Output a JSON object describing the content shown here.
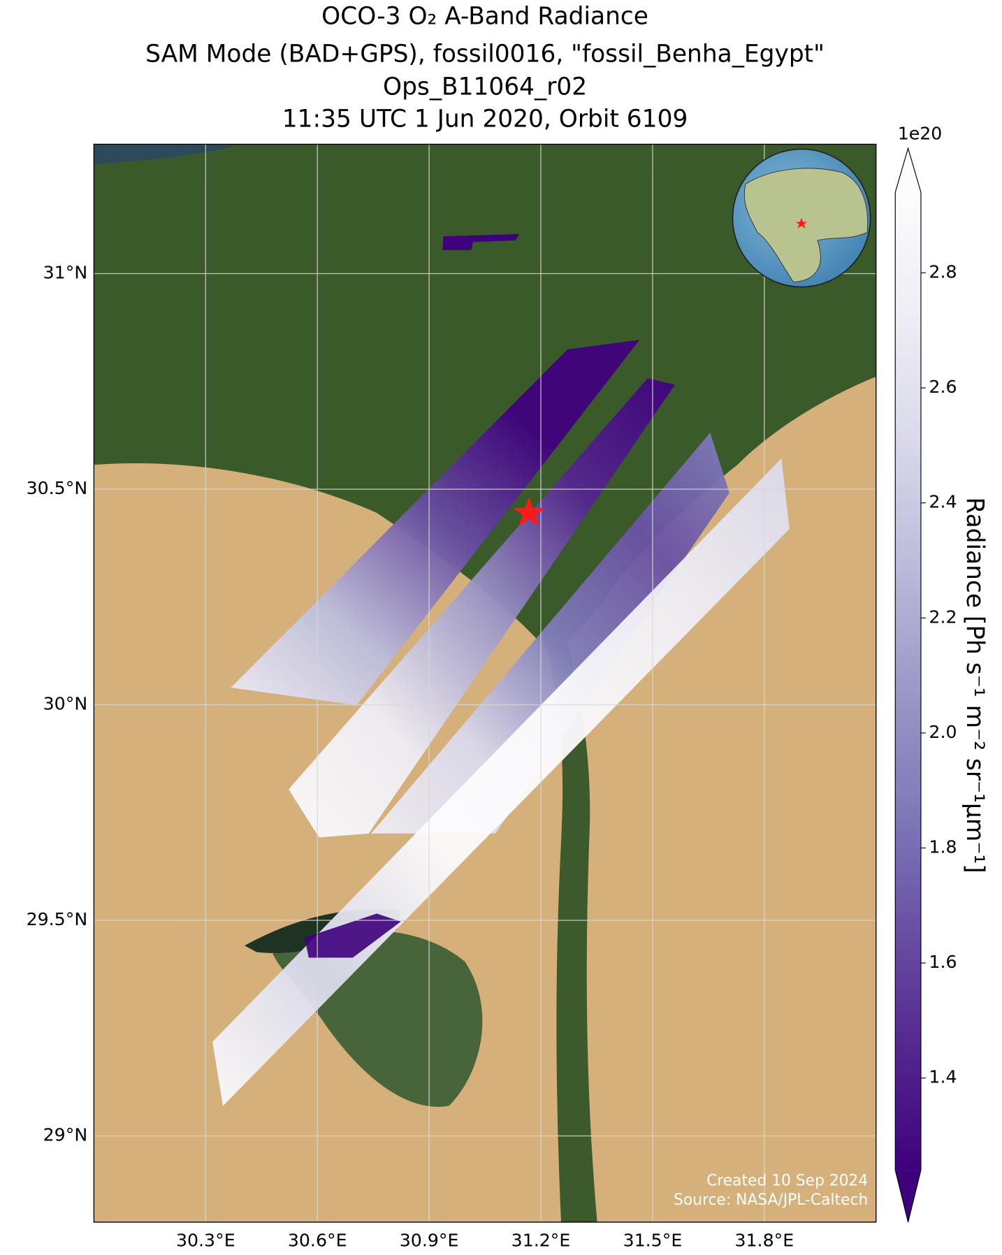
{
  "chart_data": {
    "type": "map",
    "title": [
      "OCO-3 O₂ A-Band Radiance",
      "SAM Mode (BAD+GPS), fossil0016, \"fossil_Benha_Egypt\"",
      "Ops_B11064_r02",
      "11:35 UTC 1 Jun 2020, Orbit 6109"
    ],
    "xlim": [
      30.0,
      32.1
    ],
    "ylim": [
      28.8,
      31.3
    ],
    "xticks": [
      {
        "value": 30.3,
        "label": "30.3°E"
      },
      {
        "value": 30.6,
        "label": "30.6°E"
      },
      {
        "value": 30.9,
        "label": "30.9°E"
      },
      {
        "value": 31.2,
        "label": "31.2°E"
      },
      {
        "value": 31.5,
        "label": "31.5°E"
      },
      {
        "value": 31.8,
        "label": "31.8°E"
      }
    ],
    "yticks": [
      {
        "value": 29,
        "label": "29°N"
      },
      {
        "value": 29.5,
        "label": "29.5°N"
      },
      {
        "value": 30,
        "label": "30°N"
      },
      {
        "value": 30.5,
        "label": "30.5°N"
      },
      {
        "value": 31,
        "label": "31°N"
      }
    ],
    "grid": true,
    "colorbar": {
      "label": "Radiance [Ph s⁻¹ m⁻² sr⁻¹μm⁻¹]",
      "offset_label": "1e20",
      "clim": [
        1.24,
        2.94
      ],
      "ticks": [
        1.4,
        1.6,
        1.8,
        {
          "value": 2,
          "label": "2.0"
        },
        2.2,
        2.4,
        2.6,
        2.8
      ],
      "colors": [
        "#3f007d",
        "#54278f",
        "#6a51a3",
        "#807dba",
        "#9e9ac8",
        "#bcbddc",
        "#dadaeb",
        "#efedf5",
        "#fcfbfd"
      ]
    },
    "credits": [
      "Created 10 Sep 2024",
      "Source: NASA/JPL-Caltech"
    ]
  }
}
